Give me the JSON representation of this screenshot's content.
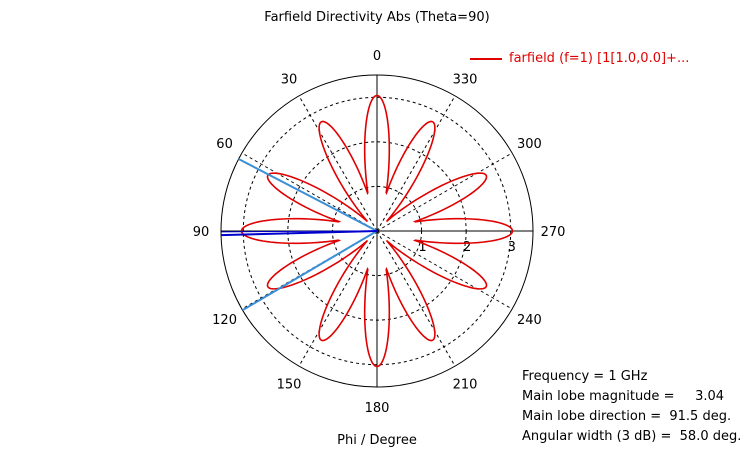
{
  "chart_data": {
    "type": "polar",
    "title": "Farfield Directivity Abs (Theta=90)",
    "xlabel": "Phi / Degree",
    "angular_ticks": [
      "0",
      "30",
      "60",
      "90",
      "120",
      "150",
      "180",
      "210",
      "240",
      "270",
      "300",
      "330"
    ],
    "radial_ticks": [
      "1",
      "2",
      "3"
    ],
    "rlim": [
      0,
      3.5
    ],
    "angle_direction": "counterclockwise",
    "zero_location": "top",
    "grid": true,
    "series": [
      {
        "name": "farfield (f=1) [1[1.0,0.0]+...",
        "color": "#e00000",
        "lobes": [
          {
            "phi": 0,
            "peak": 3.04
          },
          {
            "phi": 27,
            "peak": 2.75
          },
          {
            "phi": 63,
            "peak": 2.75
          },
          {
            "phi": 90,
            "peak": 3.04
          },
          {
            "phi": 117,
            "peak": 2.75
          },
          {
            "phi": 153,
            "peak": 2.75
          },
          {
            "phi": 180,
            "peak": 3.04
          },
          {
            "phi": 207,
            "peak": 2.75
          },
          {
            "phi": 243,
            "peak": 2.75
          },
          {
            "phi": 270,
            "peak": 3.04
          },
          {
            "phi": 297,
            "peak": 2.75
          },
          {
            "phi": 333,
            "peak": 2.75
          }
        ],
        "lobe_width_scale": 22
      }
    ],
    "annotations": {
      "main_lobe_direction": 91.5,
      "main_lobe_magnitude": 3.04,
      "half_power_angles": [
        62.5,
        120.5
      ],
      "main_lobe_color": "#0000cc",
      "beamwidth_color": "#3a8fd6"
    },
    "legend_position": "top-right"
  },
  "info": {
    "frequency": "Frequency = 1 GHz",
    "magnitude": "Main lobe magnitude =     3.04",
    "direction": "Main lobe direction =  91.5 deg.",
    "width": "Angular width (3 dB) =  58.0 deg."
  }
}
